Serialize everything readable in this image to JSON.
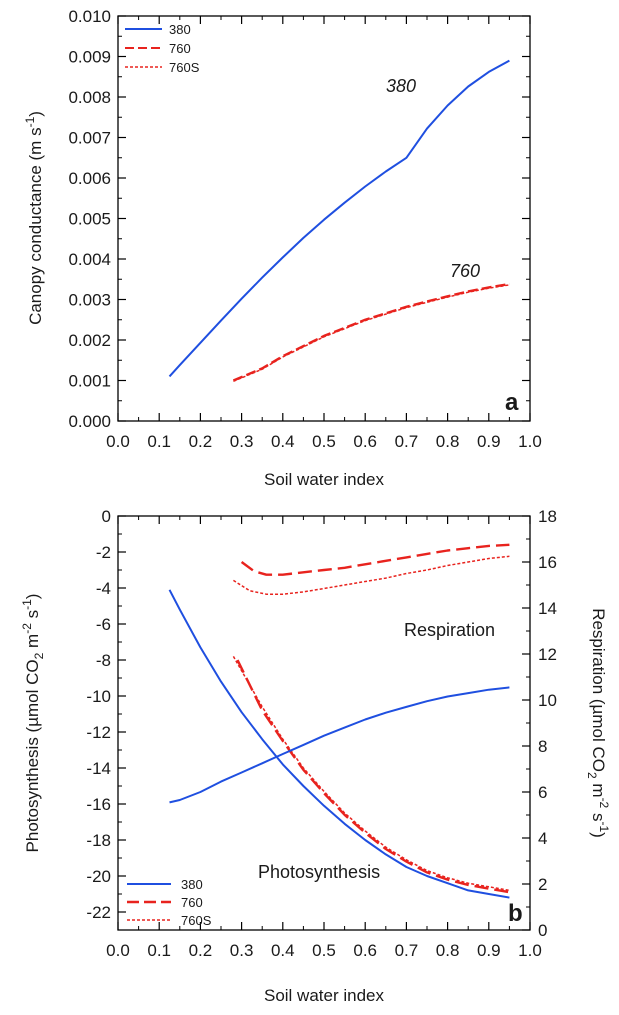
{
  "chart_data": [
    {
      "panel": "a",
      "type": "line",
      "panel_label": "a",
      "xlabel": "Soil water index",
      "ylabel": "Canopy conductance (m s-1)",
      "ylabel_parts": {
        "main": "Canopy conductance (m s",
        "sup": "-1",
        "end": ")"
      },
      "xlim": [
        0.0,
        1.0
      ],
      "ylim": [
        0.0,
        0.01
      ],
      "x_ticks": [
        "0.0",
        "0.1",
        "0.2",
        "0.3",
        "0.4",
        "0.5",
        "0.6",
        "0.7",
        "0.8",
        "0.9",
        "1.0"
      ],
      "y_ticks": [
        "0.000",
        "0.001",
        "0.002",
        "0.003",
        "0.004",
        "0.005",
        "0.006",
        "0.007",
        "0.008",
        "0.009",
        "0.010"
      ],
      "legend_position": "top-left",
      "legend": [
        {
          "name": "380",
          "color": "#1f4fe0",
          "style": "solid"
        },
        {
          "name": "760",
          "color": "#e8231e",
          "style": "dashed"
        },
        {
          "name": "760S",
          "color": "#e8231e",
          "style": "dotted"
        }
      ],
      "annotations": [
        {
          "text": "380",
          "x": 0.69,
          "y": 0.0082
        },
        {
          "text": "760",
          "x": 0.86,
          "y": 0.0036
        }
      ],
      "series": [
        {
          "name": "380",
          "color": "#1f4fe0",
          "style": "solid",
          "x": [
            0.125,
            0.15,
            0.2,
            0.25,
            0.3,
            0.35,
            0.4,
            0.45,
            0.5,
            0.55,
            0.6,
            0.65,
            0.7,
            0.75,
            0.8,
            0.85,
            0.9,
            0.95
          ],
          "y": [
            0.0011,
            0.00138,
            0.00193,
            0.00248,
            0.00302,
            0.00354,
            0.00404,
            0.00452,
            0.00497,
            0.00539,
            0.00579,
            0.00616,
            0.0065,
            0.00722,
            0.00779,
            0.00826,
            0.00862,
            0.0089
          ]
        },
        {
          "name": "760",
          "color": "#e8231e",
          "style": "dashed",
          "x": [
            0.28,
            0.35,
            0.4,
            0.45,
            0.5,
            0.55,
            0.6,
            0.65,
            0.7,
            0.75,
            0.8,
            0.85,
            0.9,
            0.95
          ],
          "y": [
            0.001,
            0.0013,
            0.0016,
            0.00185,
            0.0021,
            0.0023,
            0.0025,
            0.00266,
            0.00282,
            0.00295,
            0.00308,
            0.0032,
            0.0033,
            0.00338
          ]
        },
        {
          "name": "760S",
          "color": "#e8231e",
          "style": "dotted",
          "x": [
            0.28,
            0.35,
            0.4,
            0.45,
            0.5,
            0.55,
            0.6,
            0.65,
            0.7,
            0.75,
            0.8,
            0.85,
            0.9,
            0.95
          ],
          "y": [
            0.00098,
            0.00128,
            0.00158,
            0.00183,
            0.00208,
            0.00228,
            0.00248,
            0.00264,
            0.0028,
            0.00293,
            0.00306,
            0.00318,
            0.00328,
            0.00336
          ]
        }
      ]
    },
    {
      "panel": "b",
      "type": "line",
      "panel_label": "b",
      "xlabel": "Soil water index",
      "ylabel": "Photosynthesis (µmol CO2 m-2 s-1)",
      "ylabel_parts": {
        "main": "Photosynthesis (µmol CO",
        "sub": "2",
        "mid": " m",
        "sup1": "-2",
        "mid2": " s",
        "sup2": "-1",
        "end": ")"
      },
      "y2label": "Respiration (µmol CO2 m-2 s-1)",
      "y2label_parts": {
        "main": "Respiration (µmol CO",
        "sub": "2",
        "mid": " m",
        "sup1": "-2",
        "mid2": " s",
        "sup2": "-1",
        "end": ")"
      },
      "xlim": [
        0.0,
        1.0
      ],
      "ylim": [
        -23,
        0
      ],
      "y2lim": [
        0,
        18
      ],
      "x_ticks": [
        "0.0",
        "0.1",
        "0.2",
        "0.3",
        "0.4",
        "0.5",
        "0.6",
        "0.7",
        "0.8",
        "0.9",
        "1.0"
      ],
      "y_ticks": [
        "0",
        "-2",
        "-4",
        "-6",
        "-8",
        "-10",
        "-12",
        "-14",
        "-16",
        "-18",
        "-20",
        "-22"
      ],
      "y2_ticks": [
        "0",
        "2",
        "4",
        "6",
        "8",
        "10",
        "12",
        "14",
        "16",
        "18"
      ],
      "legend_position": "bottom-left",
      "legend": [
        {
          "name": "380",
          "color": "#1f4fe0",
          "style": "solid"
        },
        {
          "name": "760",
          "color": "#e8231e",
          "style": "dashed"
        },
        {
          "name": "760S",
          "color": "#e8231e",
          "style": "dotted"
        }
      ],
      "annotations": [
        {
          "text": "Respiration",
          "x": 0.73,
          "y": -6.3
        },
        {
          "text": "Photosynthesis",
          "x": 0.5,
          "y": -20.3
        }
      ],
      "series": [
        {
          "name": "380",
          "group": "Photosynthesis",
          "axis": "left",
          "color": "#1f4fe0",
          "style": "solid",
          "x": [
            0.125,
            0.15,
            0.2,
            0.25,
            0.3,
            0.35,
            0.4,
            0.45,
            0.5,
            0.55,
            0.6,
            0.65,
            0.7,
            0.75,
            0.8,
            0.85,
            0.9,
            0.95
          ],
          "y": [
            -4.1,
            -5.2,
            -7.3,
            -9.2,
            -10.9,
            -12.4,
            -13.8,
            -15.0,
            -16.1,
            -17.1,
            -18.0,
            -18.8,
            -19.5,
            -20.0,
            -20.4,
            -20.8,
            -21.0,
            -21.2
          ]
        },
        {
          "name": "760",
          "group": "Photosynthesis",
          "axis": "left",
          "color": "#e8231e",
          "style": "dashed",
          "x": [
            0.29,
            0.35,
            0.4,
            0.45,
            0.5,
            0.55,
            0.6,
            0.65,
            0.7,
            0.75,
            0.8,
            0.85,
            0.9,
            0.95
          ],
          "y": [
            -8.0,
            -10.8,
            -12.5,
            -14.1,
            -15.4,
            -16.6,
            -17.6,
            -18.5,
            -19.2,
            -19.8,
            -20.2,
            -20.5,
            -20.7,
            -20.9
          ]
        },
        {
          "name": "760S",
          "group": "Photosynthesis",
          "axis": "left",
          "color": "#e8231e",
          "style": "dotted",
          "x": [
            0.28,
            0.35,
            0.4,
            0.45,
            0.5,
            0.55,
            0.6,
            0.65,
            0.7,
            0.75,
            0.8,
            0.85,
            0.9,
            0.95
          ],
          "y": [
            -7.8,
            -10.6,
            -12.4,
            -14.0,
            -15.3,
            -16.5,
            -17.5,
            -18.4,
            -19.1,
            -19.7,
            -20.1,
            -20.4,
            -20.6,
            -20.8
          ]
        },
        {
          "name": "380",
          "group": "Respiration",
          "axis": "right",
          "color": "#1f4fe0",
          "style": "solid",
          "x": [
            0.125,
            0.15,
            0.2,
            0.25,
            0.3,
            0.35,
            0.4,
            0.45,
            0.5,
            0.55,
            0.6,
            0.65,
            0.7,
            0.75,
            0.8,
            0.85,
            0.9,
            0.95
          ],
          "y": [
            5.55,
            5.65,
            6.0,
            6.45,
            6.85,
            7.25,
            7.65,
            8.05,
            8.45,
            8.8,
            9.15,
            9.45,
            9.7,
            9.95,
            10.15,
            10.3,
            10.45,
            10.55
          ]
        },
        {
          "name": "760",
          "group": "Respiration",
          "axis": "right",
          "color": "#e8231e",
          "style": "dashed",
          "x": [
            0.3,
            0.33,
            0.36,
            0.4,
            0.45,
            0.5,
            0.55,
            0.6,
            0.65,
            0.7,
            0.75,
            0.8,
            0.85,
            0.9,
            0.95
          ],
          "y": [
            16.0,
            15.6,
            15.45,
            15.45,
            15.55,
            15.65,
            15.75,
            15.9,
            16.05,
            16.2,
            16.35,
            16.5,
            16.6,
            16.7,
            16.75
          ]
        },
        {
          "name": "760S",
          "group": "Respiration",
          "axis": "right",
          "color": "#e8231e",
          "style": "dotted",
          "x": [
            0.28,
            0.32,
            0.36,
            0.4,
            0.45,
            0.5,
            0.55,
            0.6,
            0.65,
            0.7,
            0.75,
            0.8,
            0.85,
            0.9,
            0.95
          ],
          "y": [
            15.2,
            14.75,
            14.6,
            14.6,
            14.7,
            14.85,
            15.0,
            15.15,
            15.3,
            15.5,
            15.65,
            15.85,
            16.0,
            16.15,
            16.25
          ]
        }
      ]
    }
  ]
}
